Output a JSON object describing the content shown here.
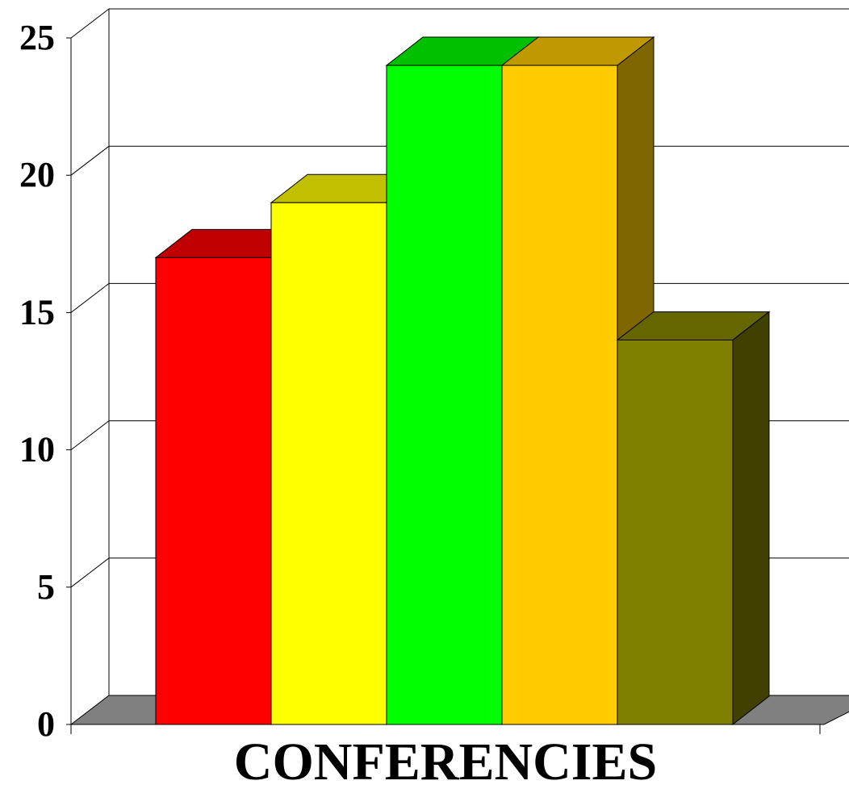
{
  "chart_data": {
    "type": "bar",
    "style": "3d-clustered-columns",
    "categories": [
      "CONFERENCIES"
    ],
    "xlabel": "",
    "ylabel": "",
    "title": "",
    "ylim": [
      0,
      25
    ],
    "yticks": [
      "0",
      "5",
      "10",
      "15",
      "20",
      "25"
    ],
    "grid": true,
    "legend": "none",
    "series": [
      {
        "values": [
          17
        ],
        "color": "#ff0000",
        "top_color": "#c00000"
      },
      {
        "values": [
          19
        ],
        "color": "#ffff00",
        "top_color": "#c0c000"
      },
      {
        "values": [
          24
        ],
        "color": "#00ff00",
        "top_color": "#00c000"
      },
      {
        "values": [
          24
        ],
        "color": "#ffcc00",
        "top_color": "#c09900",
        "side_color": "#806600"
      },
      {
        "values": [
          14
        ],
        "color": "#808000",
        "top_color": "#666600",
        "side_color": "#404000"
      }
    ],
    "floor_color": "#808080"
  }
}
